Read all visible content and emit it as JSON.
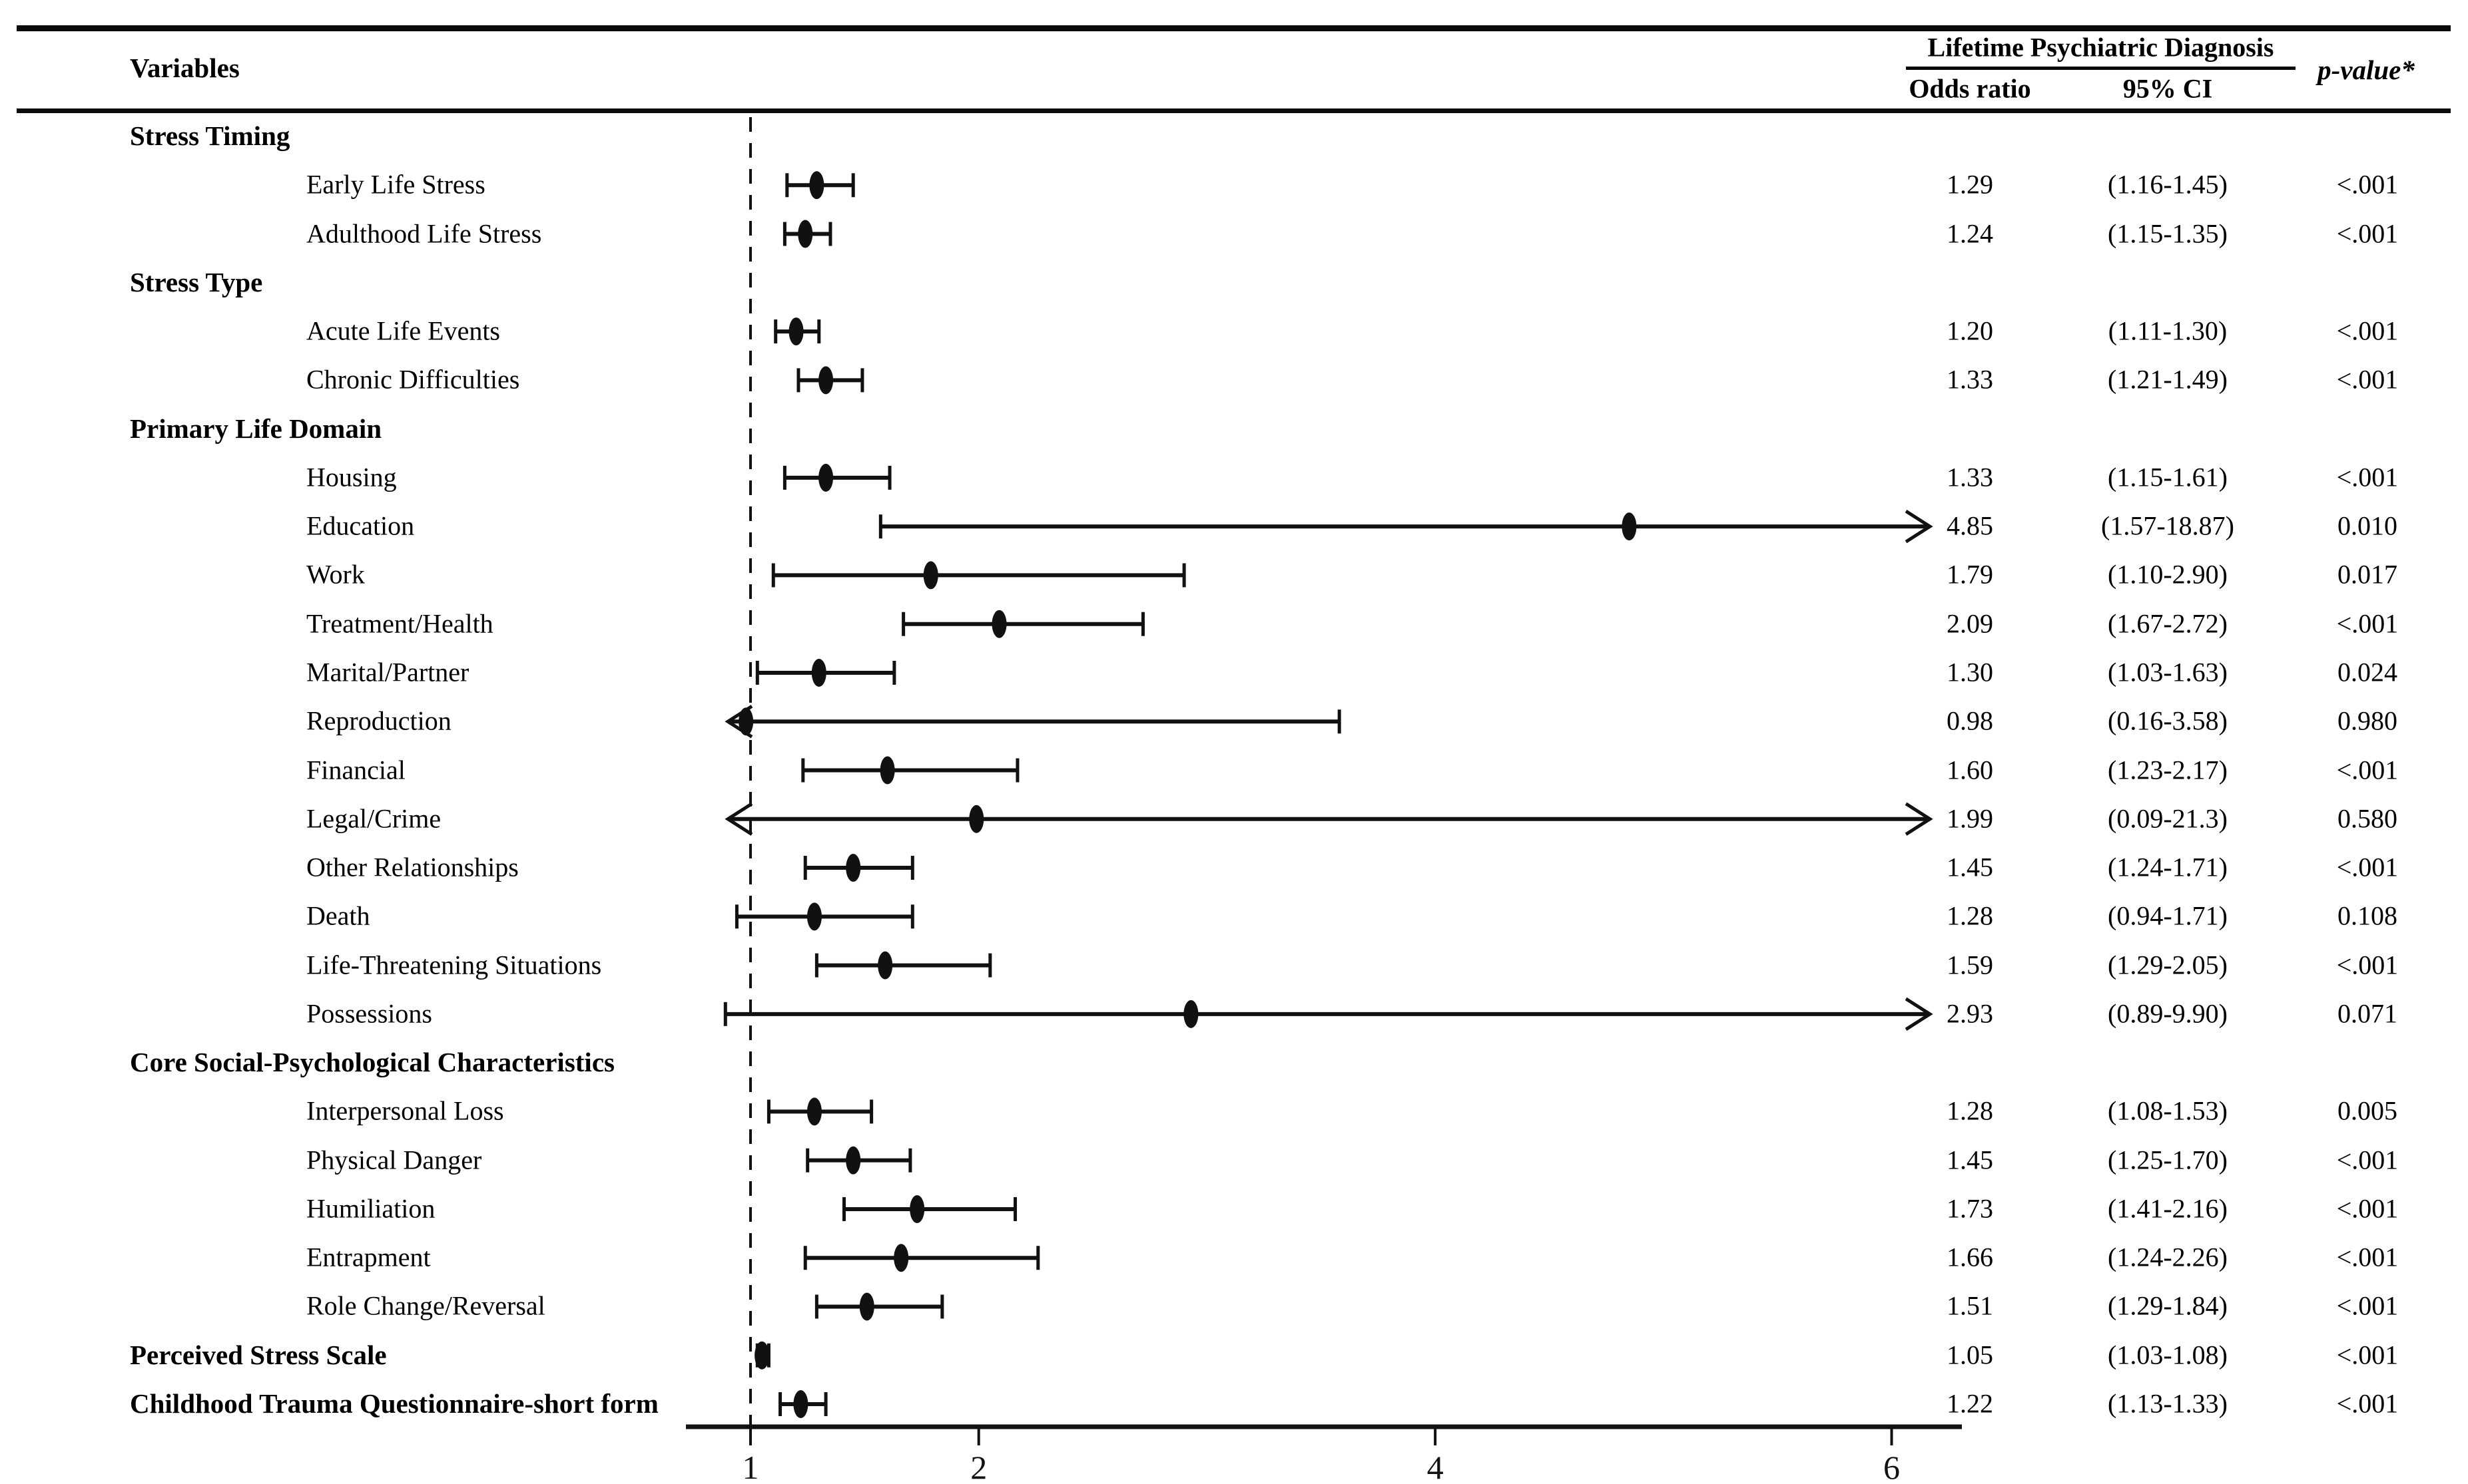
{
  "table": {
    "variables_header": "Variables",
    "group_header": "Lifetime Psychiatric Diagnosis",
    "col_odds_ratio": "Odds ratio",
    "col_ci": "95% CI",
    "col_p": "p-value*"
  },
  "chart_data": {
    "type": "forest",
    "title": "Lifetime Psychiatric Diagnosis",
    "x_axis": {
      "scale": "linear",
      "ticks": [
        1,
        2,
        4,
        6
      ],
      "range": [
        0.72,
        6.31
      ],
      "reference_line": 1
    },
    "columns": {
      "odds_ratio": "Odds ratio",
      "ci": "95% CI",
      "p": "p-value*"
    },
    "rows": [
      {
        "kind": "section",
        "label": "Stress Timing"
      },
      {
        "kind": "item",
        "label": "Early Life Stress",
        "or": 1.29,
        "lo": 1.16,
        "hi": 1.45,
        "or_text": "1.29",
        "ci_text": "(1.16-1.45)",
        "p_text": "<.001"
      },
      {
        "kind": "item",
        "label": "Adulthood Life Stress",
        "or": 1.24,
        "lo": 1.15,
        "hi": 1.35,
        "or_text": "1.24",
        "ci_text": "(1.15-1.35)",
        "p_text": "<.001"
      },
      {
        "kind": "section",
        "label": "Stress Type"
      },
      {
        "kind": "item",
        "label": "Acute Life Events",
        "or": 1.2,
        "lo": 1.11,
        "hi": 1.3,
        "or_text": "1.20",
        "ci_text": "(1.11-1.30)",
        "p_text": "<.001"
      },
      {
        "kind": "item",
        "label": "Chronic Difficulties",
        "or": 1.33,
        "lo": 1.21,
        "hi": 1.49,
        "or_text": "1.33",
        "ci_text": "(1.21-1.49)",
        "p_text": "<.001"
      },
      {
        "kind": "section",
        "label": "Primary Life Domain"
      },
      {
        "kind": "item",
        "label": "Housing",
        "or": 1.33,
        "lo": 1.15,
        "hi": 1.61,
        "or_text": "1.33",
        "ci_text": "(1.15-1.61)",
        "p_text": "<.001"
      },
      {
        "kind": "item",
        "label": "Education",
        "or": 4.85,
        "lo": 1.57,
        "hi": 18.87,
        "or_text": "4.85",
        "ci_text": "(1.57-18.87)",
        "p_text": "0.010"
      },
      {
        "kind": "item",
        "label": "Work",
        "or": 1.79,
        "lo": 1.1,
        "hi": 2.9,
        "or_text": "1.79",
        "ci_text": "(1.10-2.90)",
        "p_text": "0.017"
      },
      {
        "kind": "item",
        "label": "Treatment/Health",
        "or": 2.09,
        "lo": 1.67,
        "hi": 2.72,
        "or_text": "2.09",
        "ci_text": "(1.67-2.72)",
        "p_text": "<.001"
      },
      {
        "kind": "item",
        "label": "Marital/Partner",
        "or": 1.3,
        "lo": 1.03,
        "hi": 1.63,
        "or_text": "1.30",
        "ci_text": "(1.03-1.63)",
        "p_text": "0.024"
      },
      {
        "kind": "item",
        "label": "Reproduction",
        "or": 0.98,
        "lo": 0.16,
        "hi": 3.58,
        "or_text": "0.98",
        "ci_text": "(0.16-3.58)",
        "p_text": "0.980"
      },
      {
        "kind": "item",
        "label": "Financial",
        "or": 1.6,
        "lo": 1.23,
        "hi": 2.17,
        "or_text": "1.60",
        "ci_text": "(1.23-2.17)",
        "p_text": "<.001"
      },
      {
        "kind": "item",
        "label": "Legal/Crime",
        "or": 1.99,
        "lo": 0.09,
        "hi": 21.3,
        "or_text": "1.99",
        "ci_text": "(0.09-21.3)",
        "p_text": "0.580"
      },
      {
        "kind": "item",
        "label": "Other Relationships",
        "or": 1.45,
        "lo": 1.24,
        "hi": 1.71,
        "or_text": "1.45",
        "ci_text": "(1.24-1.71)",
        "p_text": "<.001"
      },
      {
        "kind": "item",
        "label": "Death",
        "or": 1.28,
        "lo": 0.94,
        "hi": 1.71,
        "or_text": "1.28",
        "ci_text": "(0.94-1.71)",
        "p_text": "0.108"
      },
      {
        "kind": "item",
        "label": "Life-Threatening Situations",
        "or": 1.59,
        "lo": 1.29,
        "hi": 2.05,
        "or_text": "1.59",
        "ci_text": "(1.29-2.05)",
        "p_text": "<.001"
      },
      {
        "kind": "item",
        "label": "Possessions",
        "or": 2.93,
        "lo": 0.89,
        "hi": 9.9,
        "or_text": "2.93",
        "ci_text": "(0.89-9.90)",
        "p_text": "0.071"
      },
      {
        "kind": "section",
        "label": "Core Social-Psychological Characteristics"
      },
      {
        "kind": "item",
        "label": "Interpersonal Loss",
        "or": 1.28,
        "lo": 1.08,
        "hi": 1.53,
        "or_text": "1.28",
        "ci_text": "(1.08-1.53)",
        "p_text": "0.005"
      },
      {
        "kind": "item",
        "label": "Physical Danger",
        "or": 1.45,
        "lo": 1.25,
        "hi": 1.7,
        "or_text": "1.45",
        "ci_text": "(1.25-1.70)",
        "p_text": "<.001"
      },
      {
        "kind": "item",
        "label": "Humiliation",
        "or": 1.73,
        "lo": 1.41,
        "hi": 2.16,
        "or_text": "1.73",
        "ci_text": "(1.41-2.16)",
        "p_text": "<.001"
      },
      {
        "kind": "item",
        "label": "Entrapment",
        "or": 1.66,
        "lo": 1.24,
        "hi": 2.26,
        "or_text": "1.66",
        "ci_text": "(1.24-2.26)",
        "p_text": "<.001"
      },
      {
        "kind": "item",
        "label": "Role Change/Reversal",
        "or": 1.51,
        "lo": 1.29,
        "hi": 1.84,
        "or_text": "1.51",
        "ci_text": "(1.29-1.84)",
        "p_text": "<.001"
      },
      {
        "kind": "summary",
        "label": "Perceived Stress Scale",
        "or": 1.05,
        "lo": 1.03,
        "hi": 1.08,
        "or_text": "1.05",
        "ci_text": "(1.03-1.08)",
        "p_text": "<.001"
      },
      {
        "kind": "summary",
        "label": "Childhood Trauma Questionnaire-short form",
        "or": 1.22,
        "lo": 1.13,
        "hi": 1.33,
        "or_text": "1.22",
        "ci_text": "(1.13-1.33)",
        "p_text": "<.001"
      }
    ],
    "colors": {
      "ink": "#111111"
    }
  }
}
